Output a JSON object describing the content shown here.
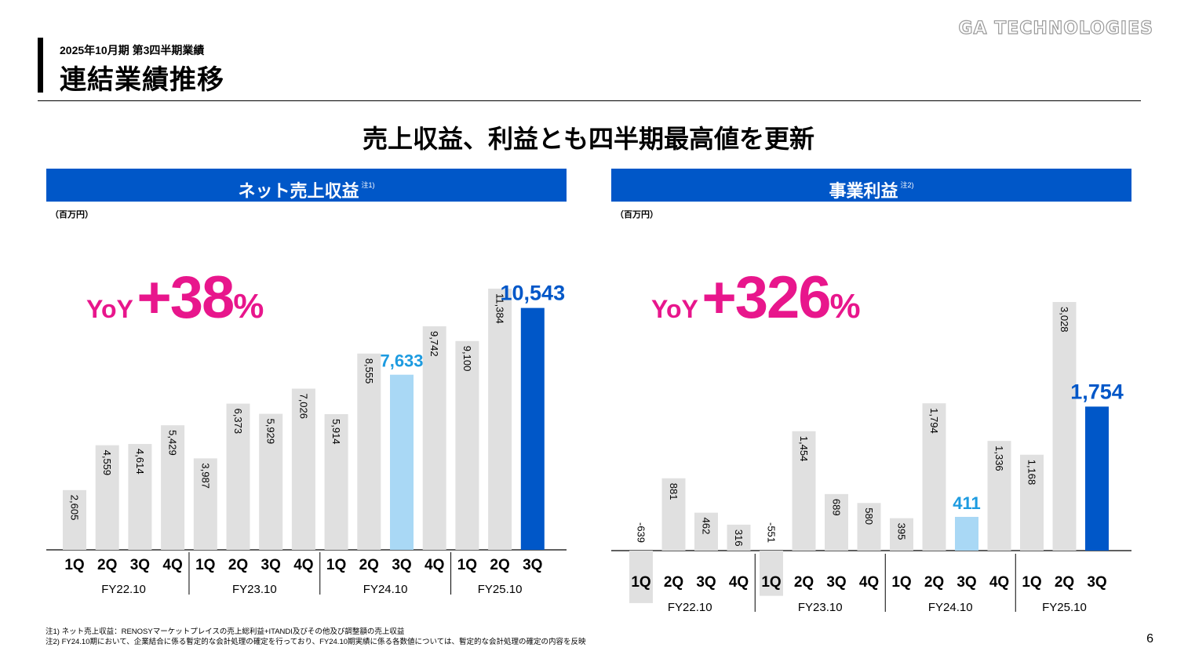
{
  "header": {
    "subtitle": "2025年10月期 第3四半期業績",
    "title": "連結業績推移",
    "logo": "GA TECHNOLOGIES"
  },
  "headline": "売上収益、利益とも四半期最高値を更新",
  "panels": {
    "left": {
      "title": "ネット売上収益",
      "note_mark": "注1)",
      "unit": "（百万円）",
      "yoy_label": "YoY",
      "yoy_value": "+38",
      "yoy_unit": "%"
    },
    "right": {
      "title": "事業利益",
      "note_mark": "注2)",
      "unit": "（百万円）",
      "yoy_label": "YoY",
      "yoy_value": "+326",
      "yoy_unit": "%"
    }
  },
  "colors": {
    "header_blue": "#0057c8",
    "bar_gray": "#e0e0e0",
    "bar_light_blue": "#a9d8f5",
    "bar_dark_blue": "#0057c8",
    "highlight_light_blue_text": "#1d9be0",
    "highlight_dark_blue_text": "#0057c8",
    "yoy_pink": "#e8168c"
  },
  "chart_data": [
    {
      "type": "bar",
      "title": "ネット売上収益",
      "categories": [
        "1Q",
        "2Q",
        "3Q",
        "4Q",
        "1Q",
        "2Q",
        "3Q",
        "4Q",
        "1Q",
        "2Q",
        "3Q",
        "4Q",
        "1Q",
        "2Q",
        "3Q"
      ],
      "groups": [
        "FY22.10",
        "FY23.10",
        "FY24.10",
        "FY25.10"
      ],
      "values": [
        2605,
        4559,
        4614,
        5429,
        3987,
        6373,
        5929,
        7026,
        5914,
        8555,
        7633,
        9742,
        9100,
        11384,
        10543
      ],
      "labels": [
        "2,605",
        "4,559",
        "4,614",
        "5,429",
        "3,987",
        "6,373",
        "5,929",
        "7,026",
        "5,914",
        "8,555",
        "7,633",
        "9,742",
        "9,100",
        "11,384",
        "10,543"
      ],
      "highlight": {
        "10": "light",
        "14": "dark"
      },
      "ylim": [
        0,
        13000
      ],
      "unit": "（百万円）"
    },
    {
      "type": "bar",
      "title": "事業利益",
      "categories": [
        "1Q",
        "2Q",
        "3Q",
        "4Q",
        "1Q",
        "2Q",
        "3Q",
        "4Q",
        "1Q",
        "2Q",
        "3Q",
        "4Q",
        "1Q",
        "2Q",
        "3Q"
      ],
      "groups": [
        "FY22.10",
        "FY23.10",
        "FY24.10",
        "FY25.10"
      ],
      "values": [
        -639,
        881,
        462,
        316,
        -551,
        1454,
        689,
        580,
        395,
        1794,
        411,
        1336,
        1168,
        3028,
        1754
      ],
      "labels": [
        "-639",
        "881",
        "462",
        "316",
        "-551",
        "1,454",
        "689",
        "580",
        "395",
        "1,794",
        "411",
        "1,336",
        "1,168",
        "3,028",
        "1,754"
      ],
      "highlight": {
        "10": "light",
        "14": "dark"
      },
      "ylim": [
        -800,
        3800
      ],
      "unit": "（百万円）"
    }
  ],
  "footnotes": [
    "注1) ネット売上収益：RENOSYマーケットプレイスの売上総利益+ITANDI及びその他及び調整額の売上収益",
    "注2) FY24.10期において、企業結合に係る暫定的な会計処理の確定を行っており、FY24.10期実績に係る各数値については、暫定的な会計処理の確定の内容を反映"
  ],
  "page_number": "6"
}
